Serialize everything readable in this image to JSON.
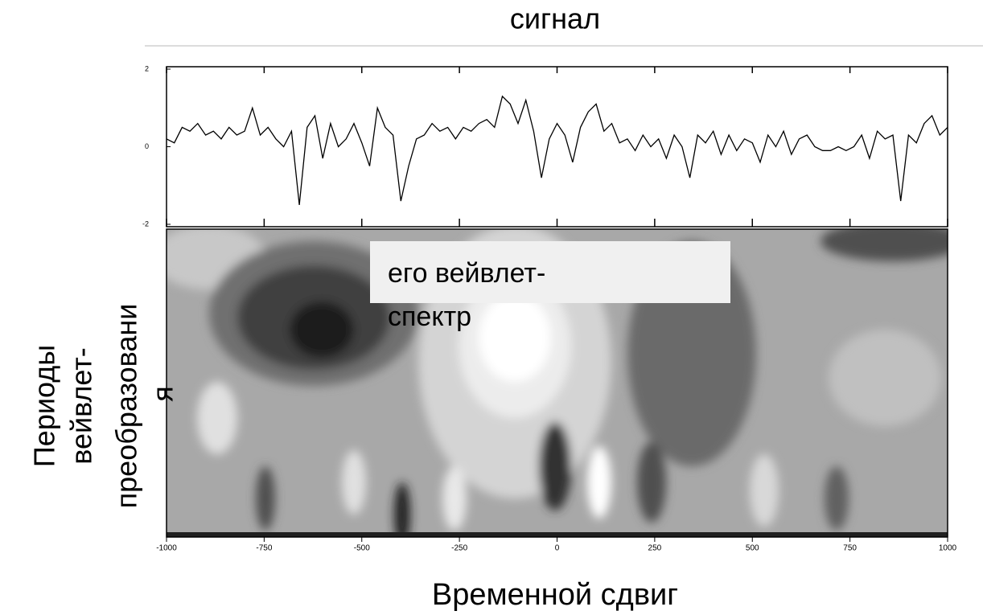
{
  "title": "сигнал",
  "annotation": [
    "его вейвлет-",
    "спектр"
  ],
  "y_label": [
    "Периоды",
    "вейвлет-",
    "преобразовани",
    "я"
  ],
  "x_label": "Временной сдвиг",
  "chart_data": {
    "type": "line",
    "x": [
      -1000,
      -980,
      -960,
      -940,
      -920,
      -900,
      -880,
      -860,
      -840,
      -820,
      -800,
      -780,
      -760,
      -740,
      -720,
      -700,
      -680,
      -660,
      -640,
      -620,
      -600,
      -580,
      -560,
      -540,
      -520,
      -500,
      -480,
      -460,
      -440,
      -420,
      -400,
      -380,
      -360,
      -340,
      -320,
      -300,
      -280,
      -260,
      -240,
      -220,
      -200,
      -180,
      -160,
      -140,
      -120,
      -100,
      -80,
      -60,
      -40,
      -20,
      0,
      20,
      40,
      60,
      80,
      100,
      120,
      140,
      160,
      180,
      200,
      220,
      240,
      260,
      280,
      300,
      320,
      340,
      360,
      380,
      400,
      420,
      440,
      460,
      480,
      500,
      520,
      540,
      560,
      580,
      600,
      620,
      640,
      660,
      680,
      700,
      720,
      740,
      760,
      780,
      800,
      820,
      840,
      860,
      880,
      900,
      920,
      940,
      960,
      980,
      1000
    ],
    "series": [
      {
        "color": "#000000",
        "values": [
          0.2,
          0.1,
          0.5,
          0.4,
          0.6,
          0.3,
          0.4,
          0.2,
          0.5,
          0.3,
          0.4,
          1.0,
          0.3,
          0.5,
          0.2,
          0.0,
          0.4,
          -1.5,
          0.5,
          0.8,
          -0.3,
          0.6,
          0.0,
          0.2,
          0.6,
          0.1,
          -0.5,
          1.0,
          0.5,
          0.3,
          -1.4,
          -0.5,
          0.2,
          0.3,
          0.6,
          0.4,
          0.5,
          0.2,
          0.5,
          0.4,
          0.6,
          0.7,
          0.5,
          1.3,
          1.1,
          0.6,
          1.2,
          0.4,
          -0.8,
          0.2,
          0.6,
          0.3,
          -0.4,
          0.5,
          0.9,
          1.1,
          0.4,
          0.6,
          0.1,
          0.2,
          -0.1,
          0.3,
          0.0,
          0.2,
          -0.3,
          0.3,
          0.0,
          -0.8,
          0.3,
          0.1,
          0.4,
          -0.2,
          0.3,
          -0.1,
          0.2,
          0.1,
          -0.4,
          0.3,
          0.0,
          0.4,
          -0.2,
          0.2,
          0.3,
          0.0,
          -0.1,
          -0.1,
          0.0,
          -0.1,
          0.0,
          0.3,
          -0.3,
          0.4,
          0.2,
          0.3,
          -1.4,
          0.3,
          0.1,
          0.6,
          0.8,
          0.3,
          0.5
        ]
      }
    ],
    "xlim": [
      -1000,
      1000
    ],
    "ylim": [
      -2,
      2
    ],
    "xticks": [
      -1000,
      -750,
      -500,
      -250,
      0,
      250,
      500,
      750,
      1000
    ],
    "yticks": [
      -2,
      0,
      2
    ]
  }
}
